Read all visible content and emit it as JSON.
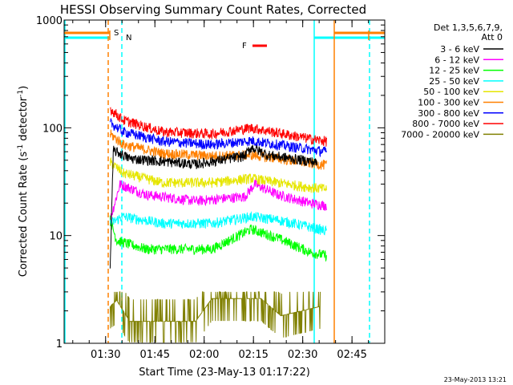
{
  "chart_data": {
    "type": "line",
    "title": "HESSI Observing Summary Count Rates, Corrected",
    "xlabel": "Start Time (23-May-13 01:17:22)",
    "ylabel_main": "Corrected Count Rate (s",
    "ylabel_sup1": "-1",
    "ylabel_mid": " detector",
    "ylabel_sup2": "-1",
    "ylabel_end": ")",
    "y_scale": "log",
    "ylim": [
      1,
      1000
    ],
    "xlim": [
      "01:17:22",
      "02:55:00"
    ],
    "x_ticks": [
      "01:30",
      "01:45",
      "02:00",
      "02:15",
      "02:30",
      "02:45"
    ],
    "x_tick_minutes": [
      12.63,
      27.63,
      42.63,
      57.63,
      72.63,
      87.63
    ],
    "xlim_minutes": [
      0,
      97.6
    ],
    "y_ticks": [
      {
        "label": "1000",
        "value": 1000
      },
      {
        "label": "100",
        "value": 100
      },
      {
        "label": "10",
        "value": 10
      },
      {
        "label": "1",
        "value": 1
      }
    ],
    "legend_placement": "right",
    "legend_header": [
      "Det 1,3,5,6,7,9,",
      "Att 0"
    ],
    "series": [
      {
        "name": "3 - 6 keV",
        "color": "#000000",
        "t0": 14,
        "t1": 77,
        "profile": [
          {
            "t": 14,
            "v": 5
          },
          {
            "t": 15,
            "v": 62
          },
          {
            "t": 20,
            "v": 52
          },
          {
            "t": 40,
            "v": 46
          },
          {
            "t": 55,
            "v": 55
          },
          {
            "t": 57,
            "v": 66
          },
          {
            "t": 62,
            "v": 56
          },
          {
            "t": 75,
            "v": 49
          },
          {
            "t": 77,
            "v": 47
          }
        ]
      },
      {
        "name": "6 - 12 keV",
        "color": "#ff00ff",
        "t0": 14,
        "t1": 80,
        "profile": [
          {
            "t": 14,
            "v": 14
          },
          {
            "t": 17,
            "v": 30
          },
          {
            "t": 25,
            "v": 24
          },
          {
            "t": 40,
            "v": 21
          },
          {
            "t": 55,
            "v": 23
          },
          {
            "t": 58,
            "v": 30
          },
          {
            "t": 65,
            "v": 24
          },
          {
            "t": 75,
            "v": 20
          },
          {
            "t": 80,
            "v": 19
          }
        ]
      },
      {
        "name": "12 - 25 keV",
        "color": "#00ff00",
        "t0": 14,
        "t1": 80,
        "profile": [
          {
            "t": 14,
            "v": 14
          },
          {
            "t": 16,
            "v": 9
          },
          {
            "t": 25,
            "v": 7.5
          },
          {
            "t": 45,
            "v": 7.5
          },
          {
            "t": 57,
            "v": 11.5
          },
          {
            "t": 65,
            "v": 9.5
          },
          {
            "t": 75,
            "v": 7
          },
          {
            "t": 80,
            "v": 6.5
          }
        ]
      },
      {
        "name": "25 - 50 keV",
        "color": "#00ffff",
        "t0": 14,
        "t1": 80,
        "profile": [
          {
            "t": 14,
            "v": 13
          },
          {
            "t": 18,
            "v": 15
          },
          {
            "t": 30,
            "v": 13
          },
          {
            "t": 45,
            "v": 13
          },
          {
            "t": 57,
            "v": 15
          },
          {
            "t": 65,
            "v": 14
          },
          {
            "t": 75,
            "v": 12
          },
          {
            "t": 80,
            "v": 11
          }
        ]
      },
      {
        "name": "50 - 100 keV",
        "color": "#e6e600",
        "t0": 14,
        "t1": 80,
        "profile": [
          {
            "t": 14,
            "v": 48
          },
          {
            "t": 18,
            "v": 38
          },
          {
            "t": 30,
            "v": 31
          },
          {
            "t": 45,
            "v": 31
          },
          {
            "t": 57,
            "v": 34
          },
          {
            "t": 65,
            "v": 31
          },
          {
            "t": 75,
            "v": 28
          },
          {
            "t": 80,
            "v": 27
          }
        ]
      },
      {
        "name": "100 - 300 keV",
        "color": "#ff8000",
        "t0": 14,
        "t1": 80,
        "profile": [
          {
            "t": 14,
            "v": 88
          },
          {
            "t": 18,
            "v": 70
          },
          {
            "t": 30,
            "v": 58
          },
          {
            "t": 45,
            "v": 55
          },
          {
            "t": 57,
            "v": 56
          },
          {
            "t": 65,
            "v": 52
          },
          {
            "t": 75,
            "v": 47
          },
          {
            "t": 80,
            "v": 45
          }
        ]
      },
      {
        "name": "300 - 800 keV",
        "color": "#0000ff",
        "t0": 14,
        "t1": 80,
        "profile": [
          {
            "t": 14,
            "v": 112
          },
          {
            "t": 18,
            "v": 92
          },
          {
            "t": 30,
            "v": 75
          },
          {
            "t": 45,
            "v": 70
          },
          {
            "t": 57,
            "v": 76
          },
          {
            "t": 65,
            "v": 70
          },
          {
            "t": 75,
            "v": 63
          },
          {
            "t": 80,
            "v": 60
          }
        ]
      },
      {
        "name": "800 - 7000 keV",
        "color": "#ff0000",
        "t0": 14,
        "t1": 80,
        "profile": [
          {
            "t": 14,
            "v": 150
          },
          {
            "t": 18,
            "v": 118
          },
          {
            "t": 30,
            "v": 92
          },
          {
            "t": 45,
            "v": 88
          },
          {
            "t": 57,
            "v": 100
          },
          {
            "t": 65,
            "v": 90
          },
          {
            "t": 75,
            "v": 79
          },
          {
            "t": 80,
            "v": 75
          }
        ]
      },
      {
        "name": "7000 - 20000 keV",
        "color": "#808000",
        "t0": 14,
        "t1": 78,
        "profile": [
          {
            "t": 14,
            "v": 2.2
          },
          {
            "t": 16,
            "v": 2.5
          },
          {
            "t": 20,
            "v": 1.6
          },
          {
            "t": 40,
            "v": 1.6
          },
          {
            "t": 45,
            "v": 2.6
          },
          {
            "t": 60,
            "v": 2.6
          },
          {
            "t": 66,
            "v": 1.8
          },
          {
            "t": 78,
            "v": 2.2
          }
        ]
      }
    ],
    "markers": {
      "S": {
        "label": "S",
        "color": "#ff8000"
      },
      "N": {
        "label": "N",
        "color": "#00ffff"
      },
      "F": {
        "label": "F",
        "color": "#ff0000"
      }
    },
    "timestamp": "23-May-2013 13:21"
  }
}
